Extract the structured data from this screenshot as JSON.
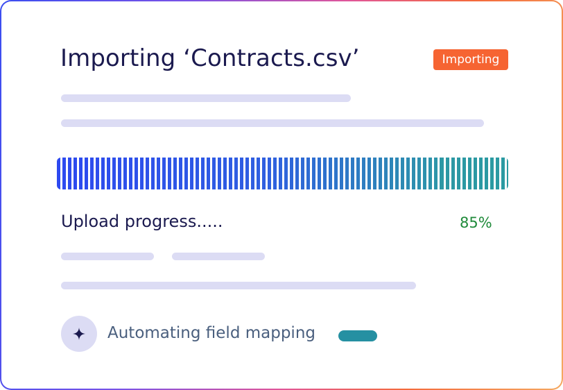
{
  "header": {
    "title": "Importing ‘Contracts.csv’",
    "status_badge": "Importing"
  },
  "upload": {
    "label": "Upload progress.....",
    "percent_text": "85%",
    "progress_fraction": 0.85
  },
  "automation": {
    "label": "Automating field mapping",
    "icon": "sparkle-icon"
  },
  "colors": {
    "badge": "#f66432",
    "title": "#1b1a4f",
    "percent": "#1f8a3a",
    "skeleton": "#dcdcf4",
    "accent_teal": "#2590a2",
    "progress_start": "#2d49f0",
    "progress_end": "#2d96a8"
  }
}
